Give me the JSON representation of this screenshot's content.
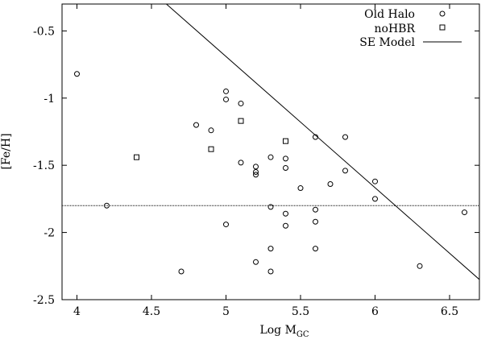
{
  "chart_data": {
    "type": "scatter",
    "xlabel": "Log M",
    "xlabel_sub": "GC",
    "ylabel": "[Fe/H]",
    "xlim": [
      3.9,
      6.7
    ],
    "ylim": [
      -2.5,
      -0.3
    ],
    "xticks": [
      4,
      4.5,
      5,
      5.5,
      6,
      6.5
    ],
    "xtick_labels": [
      "4",
      "4.5",
      "5",
      "5.5",
      "6",
      "6.5"
    ],
    "yticks": [
      -0.5,
      -1,
      -1.5,
      -2,
      -2.5
    ],
    "ytick_labels": [
      "-0.5",
      "-1",
      "-1.5",
      "-2",
      "-2.5"
    ],
    "grid": false,
    "legend_position": "top-right",
    "series": [
      {
        "name": "Old Halo",
        "marker": "circle",
        "points": [
          [
            4.0,
            -0.82
          ],
          [
            4.2,
            -1.8
          ],
          [
            4.7,
            -2.29
          ],
          [
            4.8,
            -1.2
          ],
          [
            4.9,
            -1.24
          ],
          [
            5.0,
            -0.95
          ],
          [
            5.0,
            -1.01
          ],
          [
            5.0,
            -1.94
          ],
          [
            5.1,
            -1.04
          ],
          [
            5.1,
            -1.48
          ],
          [
            5.2,
            -1.51
          ],
          [
            5.2,
            -1.55
          ],
          [
            5.2,
            -1.57
          ],
          [
            5.2,
            -2.22
          ],
          [
            5.3,
            -1.44
          ],
          [
            5.3,
            -1.81
          ],
          [
            5.3,
            -2.12
          ],
          [
            5.3,
            -2.29
          ],
          [
            5.4,
            -1.45
          ],
          [
            5.4,
            -1.52
          ],
          [
            5.4,
            -1.86
          ],
          [
            5.4,
            -1.95
          ],
          [
            5.5,
            -1.67
          ],
          [
            5.6,
            -1.29
          ],
          [
            5.6,
            -1.83
          ],
          [
            5.6,
            -1.92
          ],
          [
            5.6,
            -2.12
          ],
          [
            5.7,
            -1.64
          ],
          [
            5.8,
            -1.29
          ],
          [
            5.8,
            -1.54
          ],
          [
            6.0,
            -1.62
          ],
          [
            6.0,
            -1.75
          ],
          [
            6.3,
            -2.25
          ],
          [
            6.6,
            -1.85
          ]
        ]
      },
      {
        "name": "noHBR",
        "marker": "square",
        "points": [
          [
            4.4,
            -1.44
          ],
          [
            4.9,
            -1.38
          ],
          [
            5.1,
            -1.17
          ],
          [
            5.4,
            -1.32
          ]
        ]
      }
    ],
    "lines": [
      {
        "name": "SE Model",
        "style": "solid",
        "points": [
          [
            4.6,
            -0.3
          ],
          [
            6.7,
            -2.35
          ]
        ]
      },
      {
        "name": "",
        "style": "dotted",
        "points": [
          [
            3.9,
            -1.8
          ],
          [
            6.7,
            -1.8
          ]
        ]
      }
    ]
  }
}
